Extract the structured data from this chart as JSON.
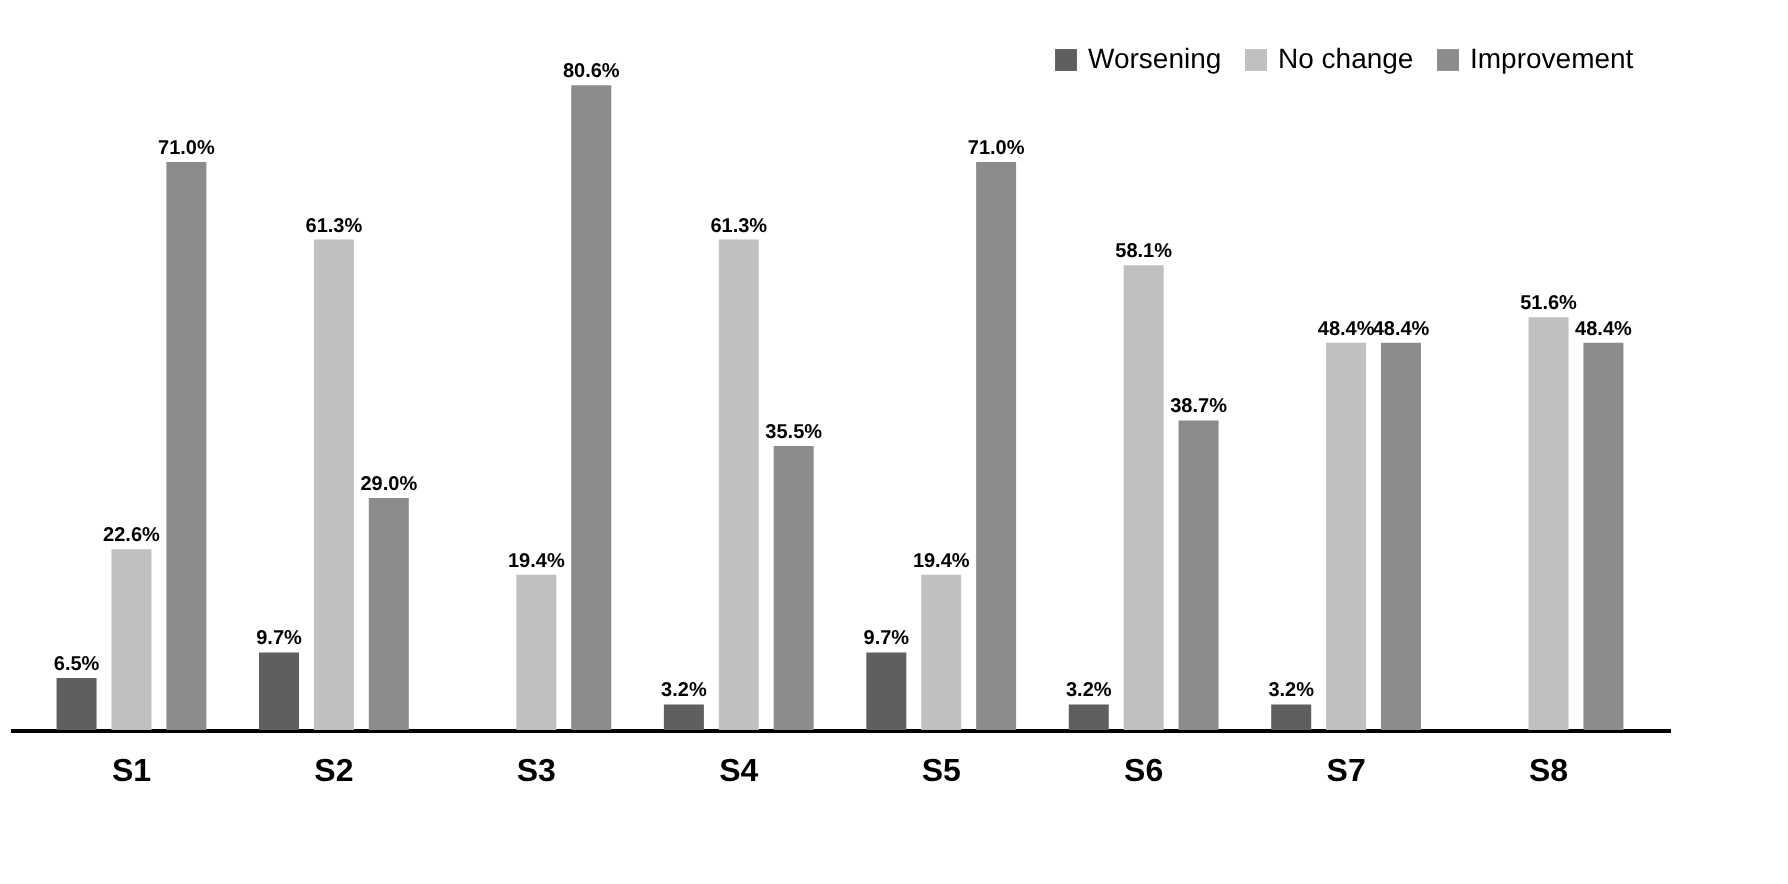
{
  "chart_data": {
    "type": "bar",
    "categories": [
      "S1",
      "S2",
      "S3",
      "S4",
      "S5",
      "S6",
      "S7",
      "S8"
    ],
    "series": [
      {
        "name": "Worsening",
        "color": "#5f5f5f",
        "values": [
          6.5,
          9.7,
          0,
          3.2,
          9.7,
          3.2,
          3.2,
          0
        ],
        "value_labels": [
          "6.5%",
          "9.7%",
          null,
          "3.2%",
          "9.7%",
          "3.2%",
          "3.2%",
          null
        ]
      },
      {
        "name": "No change",
        "color": "#c0c0c0",
        "values": [
          22.6,
          61.3,
          19.4,
          61.3,
          19.4,
          58.1,
          48.4,
          51.6
        ],
        "value_labels": [
          "22.6%",
          "61.3%",
          "19.4%",
          "61.3%",
          "19.4%",
          "58.1%",
          "48.4%",
          "51.6%"
        ]
      },
      {
        "name": "Improvement",
        "color": "#8c8c8c",
        "values": [
          71.0,
          29.0,
          80.6,
          35.5,
          71.0,
          38.7,
          48.4,
          48.4
        ],
        "value_labels": [
          "71.0%",
          "29.0%",
          "80.6%",
          "35.5%",
          "71.0%",
          "38.7%",
          "48.4%",
          "48.4%"
        ]
      }
    ],
    "legend": "top right",
    "grid": false
  }
}
